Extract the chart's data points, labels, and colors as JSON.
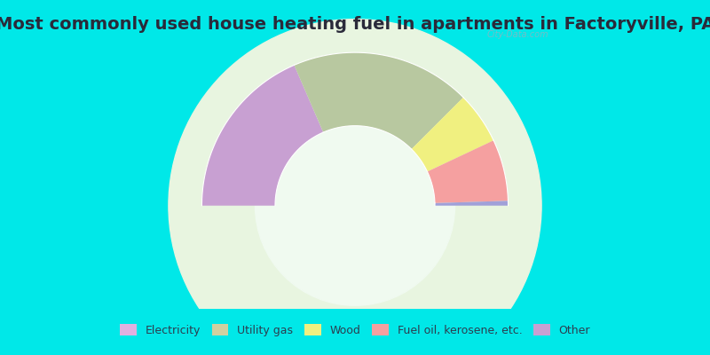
{
  "title": "Most commonly used house heating fuel in apartments in Factoryville, PA",
  "categories": [
    "Electricity",
    "Utility gas",
    "Wood",
    "Fuel oil, kerosene, etc.",
    "Other"
  ],
  "seg_order": [
    "Other",
    "Utility gas",
    "Wood",
    "Fuel oil, kerosene, etc.",
    "Electricity"
  ],
  "seg_values": [
    37,
    38,
    11,
    13,
    1
  ],
  "seg_colors": [
    "#c8a0d2",
    "#b8c8a0",
    "#f0f080",
    "#f5a0a0",
    "#a0a0d8"
  ],
  "legend_colors": [
    "#e0b0e0",
    "#d0d0a0",
    "#f0f080",
    "#f5a0a0",
    "#c8a0d2"
  ],
  "background_color": "#00e8e8",
  "chart_bg_color": "#dff0df",
  "title_color": "#2a2a3a",
  "title_fontsize": 14,
  "outer_r": 0.92,
  "inner_r": 0.48,
  "watermark": "City-Data.com"
}
